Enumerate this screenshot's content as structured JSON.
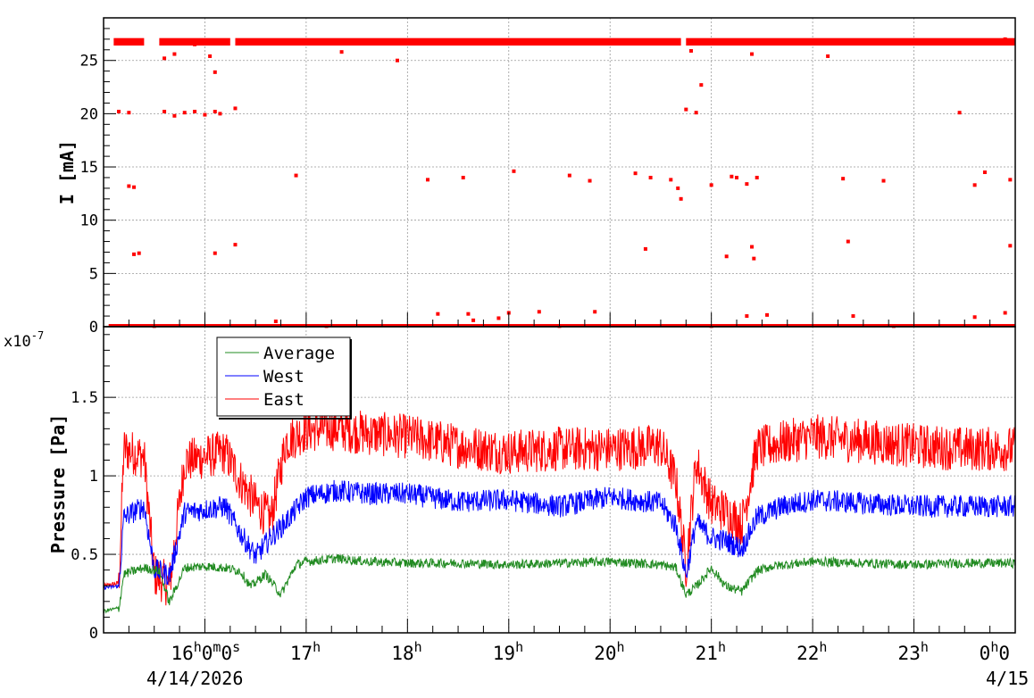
{
  "chart_data": [
    {
      "type": "scatter",
      "ylabel": "I [mA]",
      "ylim": [
        0,
        29
      ],
      "yticks": [
        0,
        5,
        10,
        15,
        20,
        25
      ],
      "grid": true,
      "colors": {
        "points": "#ff0000",
        "grid": "#999999"
      },
      "series": [
        {
          "points": [
            [
              15.15,
              26.8
            ],
            [
              15.25,
              26.7
            ],
            [
              15.35,
              26.9
            ],
            [
              15.65,
              26.6
            ],
            [
              15.9,
              26.5
            ],
            [
              16.2,
              26.6
            ],
            [
              16.5,
              26.7
            ],
            [
              16.8,
              26.6
            ],
            [
              17.2,
              26.7
            ],
            [
              17.6,
              26.9
            ],
            [
              18.0,
              26.8
            ],
            [
              18.5,
              26.6
            ],
            [
              19.0,
              26.7
            ],
            [
              19.5,
              26.8
            ],
            [
              20.0,
              26.9
            ],
            [
              20.5,
              26.8
            ],
            [
              20.9,
              26.7
            ],
            [
              21.2,
              26.9
            ],
            [
              21.6,
              26.7
            ],
            [
              22.0,
              26.6
            ],
            [
              22.5,
              26.8
            ],
            [
              23.0,
              26.9
            ],
            [
              23.5,
              26.9
            ],
            [
              23.9,
              27.0
            ],
            [
              15.6,
              25.2
            ],
            [
              15.7,
              25.6
            ],
            [
              16.05,
              25.4
            ],
            [
              16.1,
              23.9
            ],
            [
              17.35,
              25.8
            ],
            [
              17.9,
              25.0
            ],
            [
              20.8,
              25.9
            ],
            [
              21.4,
              25.6
            ],
            [
              22.15,
              25.4
            ],
            [
              15.15,
              20.2
            ],
            [
              15.25,
              20.1
            ],
            [
              15.6,
              20.2
            ],
            [
              15.7,
              19.8
            ],
            [
              15.8,
              20.1
            ],
            [
              15.9,
              20.2
            ],
            [
              16.0,
              19.9
            ],
            [
              16.1,
              20.2
            ],
            [
              16.15,
              20.0
            ],
            [
              16.3,
              20.5
            ],
            [
              20.75,
              20.4
            ],
            [
              20.85,
              20.1
            ],
            [
              20.9,
              22.7
            ],
            [
              23.45,
              20.1
            ],
            [
              15.25,
              13.2
            ],
            [
              15.3,
              13.1
            ],
            [
              16.9,
              14.2
            ],
            [
              18.2,
              13.8
            ],
            [
              18.55,
              14.0
            ],
            [
              19.05,
              14.6
            ],
            [
              19.6,
              14.2
            ],
            [
              19.8,
              13.7
            ],
            [
              20.25,
              14.4
            ],
            [
              20.4,
              14.0
            ],
            [
              20.6,
              13.8
            ],
            [
              20.67,
              13.0
            ],
            [
              20.7,
              12.0
            ],
            [
              21.0,
              13.3
            ],
            [
              21.2,
              14.1
            ],
            [
              21.25,
              14.0
            ],
            [
              21.35,
              13.4
            ],
            [
              21.45,
              14.0
            ],
            [
              22.3,
              13.9
            ],
            [
              22.7,
              13.7
            ],
            [
              23.6,
              13.3
            ],
            [
              23.7,
              14.5
            ],
            [
              23.95,
              13.8
            ],
            [
              15.3,
              6.8
            ],
            [
              15.35,
              6.9
            ],
            [
              16.1,
              6.9
            ],
            [
              16.3,
              7.7
            ],
            [
              20.35,
              7.3
            ],
            [
              21.15,
              6.6
            ],
            [
              21.4,
              7.5
            ],
            [
              21.42,
              6.4
            ],
            [
              22.35,
              8.0
            ],
            [
              23.95,
              7.6
            ],
            [
              16.7,
              0.5
            ],
            [
              18.3,
              1.2
            ],
            [
              18.6,
              1.2
            ],
            [
              18.65,
              0.6
            ],
            [
              18.9,
              0.8
            ],
            [
              19.0,
              1.3
            ],
            [
              19.3,
              1.4
            ],
            [
              19.85,
              1.4
            ],
            [
              21.35,
              1.0
            ],
            [
              21.55,
              1.1
            ],
            [
              22.4,
              1.0
            ],
            [
              23.6,
              0.9
            ],
            [
              23.9,
              1.3
            ],
            [
              15.5,
              0.05
            ],
            [
              17.2,
              0.05
            ],
            [
              19.5,
              0.05
            ],
            [
              21.0,
              0.05
            ],
            [
              22.8,
              0.05
            ]
          ]
        }
      ]
    },
    {
      "type": "line",
      "ylabel": "Pressure [Pa]",
      "y_exponent_label": "x10",
      "y_exponent": "-7",
      "ylim": [
        0,
        1.95
      ],
      "yticks": [
        0,
        0.5,
        1,
        1.5
      ],
      "ytick_labels": [
        "0",
        "0.5",
        "1",
        "1.5"
      ],
      "xlim": [
        15.0,
        24.0
      ],
      "xticks": [
        16,
        17,
        18,
        19,
        20,
        21,
        22,
        23,
        24
      ],
      "xtick_labels": [
        {
          "base": "16",
          "sup": "h",
          "rest": "0",
          "sup2": "m",
          "rest2": "0",
          "sup3": "s"
        },
        {
          "base": "17",
          "sup": "h"
        },
        {
          "base": "18",
          "sup": "h"
        },
        {
          "base": "19",
          "sup": "h"
        },
        {
          "base": "20",
          "sup": "h"
        },
        {
          "base": "21",
          "sup": "h"
        },
        {
          "base": "22",
          "sup": "h"
        },
        {
          "base": "23",
          "sup": "h"
        },
        {
          "base": "0",
          "sup": "h",
          "rest": "0"
        }
      ],
      "date_labels": [
        "4/14/2026",
        "4/15"
      ],
      "grid": true,
      "legend_position": "top-left",
      "series": [
        {
          "name": "Average",
          "color": "#228b22",
          "x": [
            15.0,
            15.15,
            15.2,
            15.4,
            15.55,
            15.65,
            15.8,
            16.0,
            16.2,
            16.35,
            16.45,
            16.6,
            16.75,
            16.9,
            17.0,
            17.3,
            17.6,
            18.0,
            18.5,
            19.0,
            19.5,
            20.0,
            20.5,
            20.65,
            20.75,
            20.85,
            21.0,
            21.15,
            21.3,
            21.45,
            21.6,
            22.0,
            22.5,
            23.0,
            23.5,
            24.0
          ],
          "values": [
            0.14,
            0.16,
            0.38,
            0.42,
            0.4,
            0.2,
            0.42,
            0.43,
            0.42,
            0.4,
            0.3,
            0.38,
            0.25,
            0.44,
            0.46,
            0.48,
            0.46,
            0.45,
            0.45,
            0.44,
            0.45,
            0.46,
            0.44,
            0.42,
            0.25,
            0.3,
            0.42,
            0.3,
            0.27,
            0.4,
            0.43,
            0.46,
            0.45,
            0.44,
            0.45,
            0.45
          ]
        },
        {
          "name": "West",
          "color": "#0000ff",
          "x": [
            15.0,
            15.15,
            15.2,
            15.4,
            15.5,
            15.65,
            15.8,
            16.0,
            16.2,
            16.35,
            16.5,
            16.65,
            16.8,
            17.0,
            17.3,
            17.6,
            18.0,
            18.5,
            19.0,
            19.5,
            20.0,
            20.5,
            20.65,
            20.75,
            20.85,
            21.0,
            21.15,
            21.3,
            21.45,
            21.7,
            22.0,
            22.5,
            23.0,
            23.5,
            24.0
          ],
          "values": [
            0.29,
            0.3,
            0.75,
            0.82,
            0.42,
            0.38,
            0.78,
            0.8,
            0.82,
            0.65,
            0.5,
            0.62,
            0.72,
            0.88,
            0.92,
            0.9,
            0.9,
            0.85,
            0.86,
            0.82,
            0.88,
            0.84,
            0.7,
            0.38,
            0.72,
            0.62,
            0.6,
            0.55,
            0.75,
            0.82,
            0.86,
            0.84,
            0.82,
            0.82,
            0.82
          ]
        },
        {
          "name": "East",
          "color": "#ff0000",
          "x": [
            15.0,
            15.15,
            15.2,
            15.4,
            15.5,
            15.65,
            15.8,
            16.0,
            16.2,
            16.35,
            16.5,
            16.65,
            16.8,
            17.0,
            17.3,
            17.6,
            18.0,
            18.5,
            19.0,
            19.5,
            20.0,
            20.5,
            20.65,
            20.75,
            20.85,
            21.0,
            21.15,
            21.3,
            21.45,
            21.7,
            22.0,
            22.5,
            23.0,
            23.5,
            24.0
          ],
          "values": [
            0.3,
            0.32,
            1.2,
            1.15,
            0.4,
            0.33,
            1.12,
            1.15,
            1.18,
            1.0,
            0.85,
            0.75,
            1.25,
            1.32,
            1.33,
            1.3,
            1.28,
            1.22,
            1.18,
            1.2,
            1.2,
            1.22,
            1.0,
            0.45,
            1.12,
            0.85,
            0.8,
            0.72,
            1.2,
            1.24,
            1.28,
            1.25,
            1.22,
            1.2,
            1.2
          ]
        }
      ]
    }
  ]
}
